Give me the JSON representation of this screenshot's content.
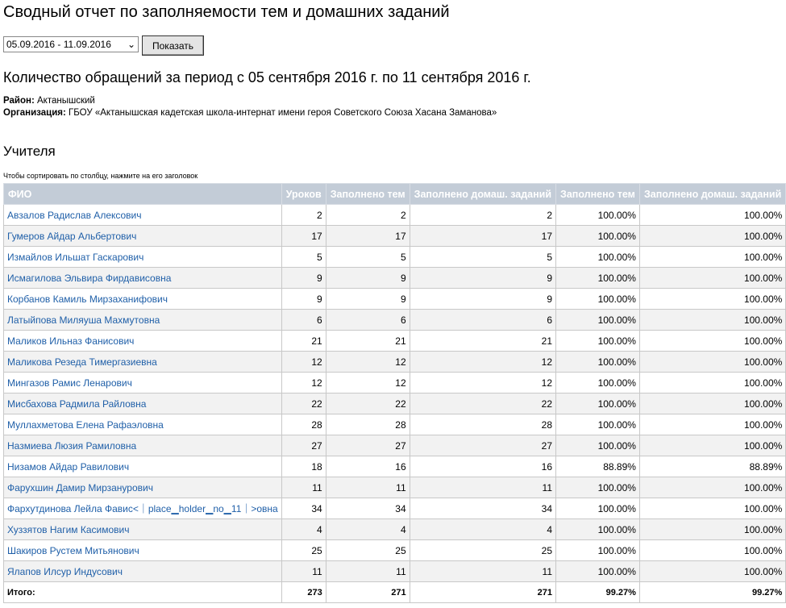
{
  "title": "Сводный отчет по заполняемости тем и домашних заданий",
  "period_select": {
    "value": "05.09.2016 - 11.09.2016"
  },
  "show_button": "Показать",
  "subtitle": "Количество обращений за период с 05 сентября 2016 г. по 11 сентября 2016 г.",
  "district_label": "Район:",
  "district": "Актанышский",
  "org_label": "Организация:",
  "org": "ГБОУ «Актанышская кадетская школа-интернат имени героя Советского Союза Хасана Заманова»",
  "section_title": "Учителя",
  "sort_hint": "Чтобы сортировать по столбцу, нажмите на его заголовок",
  "columns": [
    "ФИО",
    "Уроков",
    "Заполнено тем",
    "Заполнено домаш. заданий",
    "Заполнено тем",
    "Заполнено домаш. заданий"
  ],
  "rows": [
    [
      "Авзалов Радислав Алексович",
      "2",
      "2",
      "2",
      "100.00%",
      "100.00%"
    ],
    [
      "Гумеров Айдар Альбертович",
      "17",
      "17",
      "17",
      "100.00%",
      "100.00%"
    ],
    [
      "Измайлов Ильшат Гаскарович",
      "5",
      "5",
      "5",
      "100.00%",
      "100.00%"
    ],
    [
      "Исмагилова Эльвира Фирдависовна",
      "9",
      "9",
      "9",
      "100.00%",
      "100.00%"
    ],
    [
      "Корбанов Камиль Мирзаханифович",
      "9",
      "9",
      "9",
      "100.00%",
      "100.00%"
    ],
    [
      "Латыйпова Миляуша Махмутовна",
      "6",
      "6",
      "6",
      "100.00%",
      "100.00%"
    ],
    [
      "Маликов Ильназ Фанисович",
      "21",
      "21",
      "21",
      "100.00%",
      "100.00%"
    ],
    [
      "Маликова Резеда Тимергазиевна",
      "12",
      "12",
      "12",
      "100.00%",
      "100.00%"
    ],
    [
      "Мингазов Рамис Ленарович",
      "12",
      "12",
      "12",
      "100.00%",
      "100.00%"
    ],
    [
      "Мисбахова Радмила Райловна",
      "22",
      "22",
      "22",
      "100.00%",
      "100.00%"
    ],
    [
      "Муллахметова Елена Рафаэловна",
      "28",
      "28",
      "28",
      "100.00%",
      "100.00%"
    ],
    [
      "Назмиева Люзия Рамиловна",
      "27",
      "27",
      "27",
      "100.00%",
      "100.00%"
    ],
    [
      "Низамов Айдар Равилович",
      "18",
      "16",
      "16",
      "88.89%",
      "88.89%"
    ],
    [
      "Фарухшин Дамир Мирзанурович",
      "11",
      "11",
      "11",
      "100.00%",
      "100.00%"
    ],
    [
      "Фархутдинова Лейла Фавис<｜place▁holder▁no▁11｜>овна",
      "34",
      "34",
      "34",
      "100.00%",
      "100.00%"
    ],
    [
      "Хуззятов Нагим Касимович",
      "4",
      "4",
      "4",
      "100.00%",
      "100.00%"
    ],
    [
      "Шакиров Рустем Митьянович",
      "25",
      "25",
      "25",
      "100.00%",
      "100.00%"
    ],
    [
      "Ялапов Илсур Индусович",
      "11",
      "11",
      "11",
      "100.00%",
      "100.00%"
    ]
  ],
  "total": [
    "Итого:",
    "273",
    "271",
    "271",
    "99.27%",
    "99.27%"
  ]
}
